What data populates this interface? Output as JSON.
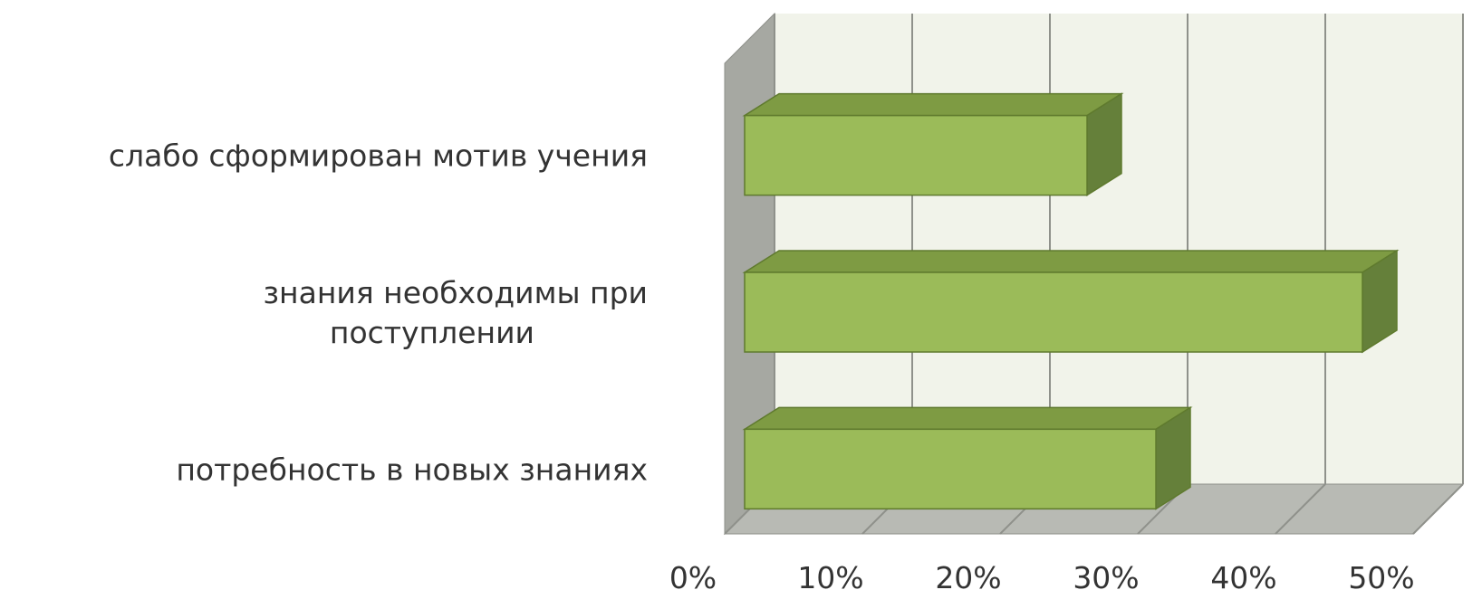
{
  "chart_data": {
    "type": "bar",
    "orientation": "horizontal",
    "style": "3d",
    "categories": [
      [
        "слабо сформирован мотив учения"
      ],
      [
        "знания необходимы при",
        "поступлении"
      ],
      [
        "потребность в новых знаниях"
      ]
    ],
    "values": [
      25,
      45,
      30
    ],
    "xticks": [
      "0%",
      "10%",
      "20%",
      "30%",
      "40%",
      "50%"
    ],
    "xlim": [
      0,
      50
    ],
    "grid": true,
    "legend": "none",
    "colors": {
      "bar_front": "#9bbb59",
      "bar_top": "#7e9b43",
      "bar_side": "#65803a",
      "bar_edge": "#5f7a2e",
      "wall_back": "#f1f3ea",
      "wall_side": "#a6a8a2",
      "floor": "#b8bab4",
      "grid": "#8f918b"
    }
  }
}
